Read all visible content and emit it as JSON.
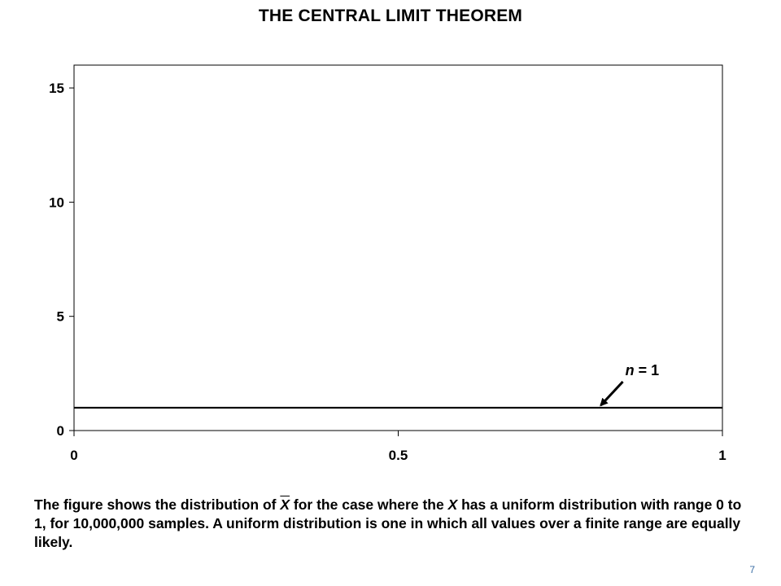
{
  "slide": {
    "title": "THE CENTRAL LIMIT THEOREM",
    "page_number": "7",
    "caption": {
      "part1": "The figure shows the distribution of ",
      "xbar": "X",
      "part2": " for the case where the ",
      "x_italic": "X",
      "part3": " has a uniform distribution with range 0 to 1, for 10,000,000 samples.  A uniform distribution is one in which all values over a finite range are equally likely."
    }
  },
  "chart_data": {
    "type": "line",
    "title": "",
    "xlabel": "",
    "ylabel": "",
    "xlim": [
      0,
      1
    ],
    "ylim": [
      0,
      16
    ],
    "x_ticks": [
      0,
      0.5,
      1
    ],
    "x_tick_labels": [
      "0",
      "0.5",
      "1"
    ],
    "y_ticks": [
      0,
      5,
      10,
      15
    ],
    "y_tick_labels": [
      "0",
      "5",
      "10",
      "15"
    ],
    "grid": false,
    "series": [
      {
        "name": "",
        "x": [
          0,
          0.1,
          0.2,
          0.3,
          0.4,
          0.5,
          0.6,
          0.7,
          0.8,
          0.9,
          1
        ],
        "values": [
          1,
          1,
          1,
          1,
          1,
          1,
          1,
          1,
          1,
          1,
          1
        ],
        "color": "#000000"
      }
    ],
    "annotations": [
      {
        "text_italic": "n",
        "text_rest": " = 1",
        "arrow_target_x": 0.81,
        "arrow_target_y": 1
      }
    ]
  }
}
